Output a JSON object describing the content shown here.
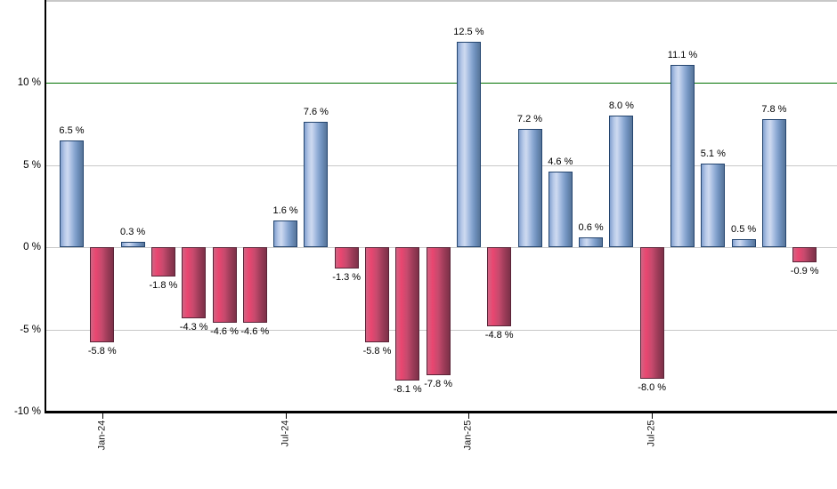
{
  "chart_data": {
    "type": "bar",
    "title": "",
    "xlabel": "",
    "ylabel": "",
    "ylim": [
      -10,
      14.9
    ],
    "grid": true,
    "legend": "none",
    "bars": [
      {
        "label": "6.5 %",
        "value": 6.5
      },
      {
        "label": "-5.8 %",
        "value": -5.8
      },
      {
        "label": "0.3 %",
        "value": 0.3
      },
      {
        "label": "-1.8 %",
        "value": -1.8
      },
      {
        "label": "-4.3 %",
        "value": -4.3
      },
      {
        "label": "-4.6 %",
        "value": -4.6
      },
      {
        "label": "-4.6 %",
        "value": -4.6
      },
      {
        "label": "1.6 %",
        "value": 1.6
      },
      {
        "label": "7.6 %",
        "value": 7.6
      },
      {
        "label": "-1.3 %",
        "value": -1.3
      },
      {
        "label": "-5.8 %",
        "value": -5.8
      },
      {
        "label": "-8.1 %",
        "value": -8.1
      },
      {
        "label": "-7.8 %",
        "value": -7.8
      },
      {
        "label": "12.5 %",
        "value": 12.5
      },
      {
        "label": "-4.8 %",
        "value": -4.8
      },
      {
        "label": "7.2 %",
        "value": 7.2
      },
      {
        "label": "4.6 %",
        "value": 4.6
      },
      {
        "label": "0.6 %",
        "value": 0.6
      },
      {
        "label": "8.0 %",
        "value": 8.0
      },
      {
        "label": "-8.0 %",
        "value": -8.0
      },
      {
        "label": "11.1 %",
        "value": 11.1
      },
      {
        "label": "5.1 %",
        "value": 5.1
      },
      {
        "label": "0.5 %",
        "value": 0.5
      },
      {
        "label": "7.8 %",
        "value": 7.8
      },
      {
        "label": "-0.9 %",
        "value": -0.9
      }
    ],
    "y_axis_ticks": [
      {
        "label": "10 %",
        "value": 10,
        "style": "reference"
      },
      {
        "label": "5 %",
        "value": 5,
        "style": "grid"
      },
      {
        "label": "0 %",
        "value": 0,
        "style": "grid"
      },
      {
        "label": "-5 %",
        "value": -5,
        "style": "grid"
      },
      {
        "label": "-10 %",
        "value": -10,
        "style": "axis"
      }
    ],
    "x_axis_ticks": [
      {
        "label": "Jan-24",
        "bar_index": 1
      },
      {
        "label": "Jul-24",
        "bar_index": 7
      },
      {
        "label": "Jan-25",
        "bar_index": 13
      },
      {
        "label": "Jul-25",
        "bar_index": 19
      }
    ],
    "reference_line": {
      "value": 10,
      "color": "#007000"
    },
    "colors": {
      "positive_bar": "#8fabd8",
      "positive_bar_border": "#24456f",
      "negative_bar": "#e0436c",
      "negative_bar_border": "#5a2438",
      "reference_line": "#007000",
      "gridline": "#c8c8c8",
      "axis": "#000000",
      "plot_top_border": "#c8c8c8",
      "label_text": "#000000"
    }
  }
}
